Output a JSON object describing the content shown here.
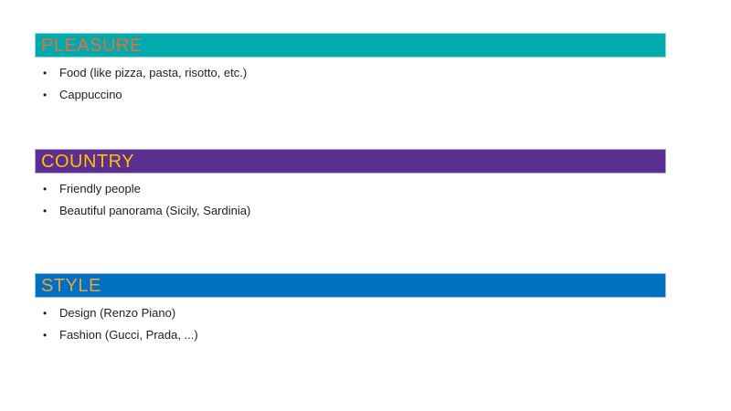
{
  "slide": {
    "background_color": "#FFFFFF",
    "sections": [
      {
        "title": "PLEASURE",
        "title_color": "#EA6B3D",
        "bar_color": "#00AAAD",
        "bar_border_color": "#8FD9DB",
        "bullets": [
          "Food (like pizza, pasta, risotto, etc.)",
          "Cappuccino"
        ]
      },
      {
        "title": "COUNTRY",
        "title_color": "#FFC000",
        "bar_color": "#5B2E91",
        "bar_border_color": "#B4A5D6",
        "bullets": [
          "Friendly people",
          "Beautiful panorama (Sicily, Sardinia)"
        ]
      },
      {
        "title": "STYLE",
        "title_color": "#E9A23C",
        "bar_color": "#0070C0",
        "bar_border_color": "#9CC3E5",
        "bullets": [
          "Design (Renzo Piano)",
          "Fashion (Gucci, Prada, ...)"
        ]
      }
    ]
  }
}
